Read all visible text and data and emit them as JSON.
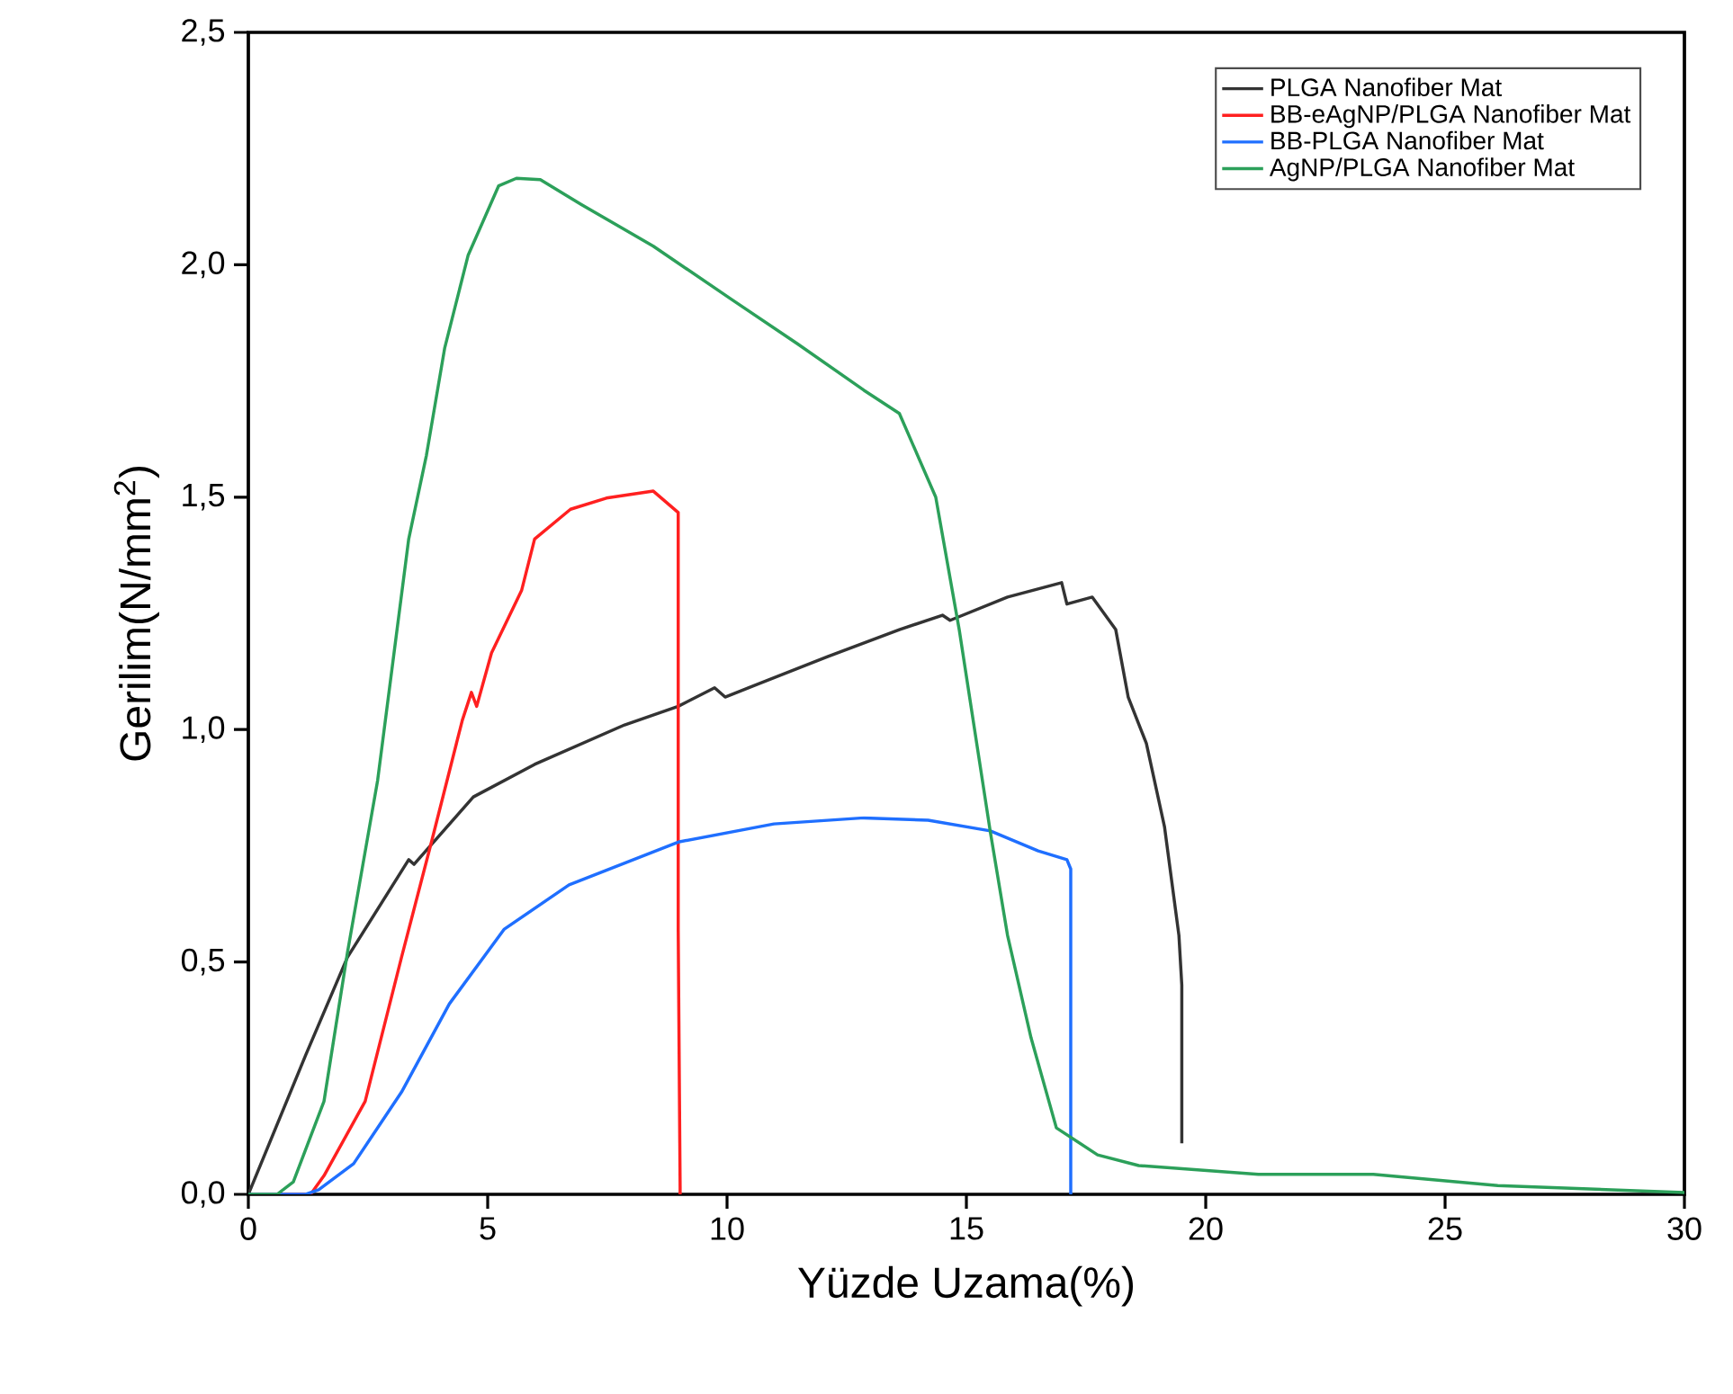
{
  "chart_data": {
    "type": "line",
    "xlabel": "Yüzde Uzama(%)",
    "ylabel": "Gerilim(N/mm$^{2}$)",
    "xlim": [
      0,
      30
    ],
    "ylim": [
      0,
      2.5
    ],
    "xticks": [
      0,
      5,
      10,
      15,
      20,
      25,
      30
    ],
    "yticks": [
      {
        "value": 0,
        "label": "0,0"
      },
      {
        "value": 0.5,
        "label": "0,5"
      },
      {
        "value": 1.0,
        "label": "1,0"
      },
      {
        "value": 1.5,
        "label": "1,5"
      },
      {
        "value": 2.0,
        "label": "2,0"
      },
      {
        "value": 2.5,
        "label": "2,5"
      }
    ],
    "legend": "top right",
    "series": [
      {
        "name": "PLGA Nanofiber Mat",
        "color": "#333333",
        "x": [
          0,
          1.2,
          2.07,
          3.35,
          3.46,
          4.7,
          5.98,
          7.86,
          8.98,
          9.74,
          9.96,
          12.1,
          13.6,
          14.5,
          14.66,
          15.86,
          16.99,
          17.1,
          17.63,
          18.12,
          18.38,
          18.76,
          19.14,
          19.44,
          19.5,
          19.5
        ],
        "values": [
          0,
          0.3,
          0.51,
          0.72,
          0.71,
          0.855,
          0.925,
          1.01,
          1.05,
          1.09,
          1.07,
          1.157,
          1.215,
          1.246,
          1.235,
          1.285,
          1.316,
          1.27,
          1.285,
          1.215,
          1.07,
          0.97,
          0.79,
          0.557,
          0.45,
          0.11
        ]
      },
      {
        "name": "BB-eAgNP/PLGA Nanofiber Mat",
        "color": "#ff2020",
        "x": [
          0,
          1.3,
          1.58,
          2.44,
          3.2,
          3.83,
          4.47,
          4.66,
          4.77,
          5.08,
          5.71,
          5.98,
          6.73,
          7.48,
          8.46,
          8.98,
          8.98,
          9.02,
          9.02
        ],
        "values": [
          0,
          0,
          0.04,
          0.2,
          0.51,
          0.76,
          1.02,
          1.08,
          1.05,
          1.165,
          1.3,
          1.41,
          1.474,
          1.498,
          1.513,
          1.467,
          0.569,
          0.015,
          0
        ]
      },
      {
        "name": "BB-PLGA Nanofiber Mat",
        "color": "#1f6fff",
        "x": [
          0,
          1.2,
          1.47,
          2.2,
          3.2,
          4.2,
          5.34,
          6.7,
          8.98,
          10.98,
          12.86,
          14.2,
          15.5,
          16.5,
          17.1,
          17.18,
          17.18
        ],
        "values": [
          0,
          0,
          0.01,
          0.066,
          0.22,
          0.41,
          0.57,
          0.666,
          0.758,
          0.797,
          0.81,
          0.805,
          0.782,
          0.739,
          0.72,
          0.7,
          0
        ]
      },
      {
        "name": "AgNP/PLGA Nanofiber Mat",
        "color": "#2ca05a",
        "x": [
          0,
          0.6,
          0.94,
          1.58,
          2.07,
          2.7,
          3.35,
          3.72,
          4.1,
          4.59,
          5.23,
          5.6,
          6.1,
          6.95,
          8.46,
          10.1,
          11.47,
          12.86,
          13.6,
          14.36,
          14.85,
          15.5,
          15.86,
          16.35,
          16.88,
          17.74,
          18.6,
          21.1,
          23.5,
          26.1,
          30.0
        ],
        "values": [
          0,
          0,
          0.027,
          0.2,
          0.52,
          0.89,
          1.41,
          1.59,
          1.82,
          2.02,
          2.17,
          2.186,
          2.183,
          2.13,
          2.04,
          1.925,
          1.83,
          1.73,
          1.68,
          1.5,
          1.215,
          0.78,
          0.557,
          0.337,
          0.143,
          0.085,
          0.062,
          0.043,
          0.043,
          0.019,
          0.004
        ]
      }
    ]
  }
}
